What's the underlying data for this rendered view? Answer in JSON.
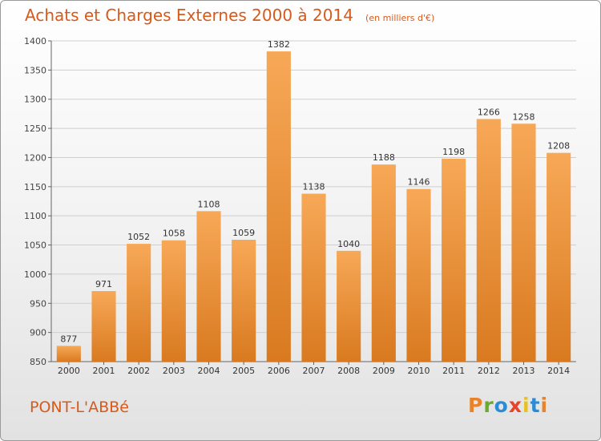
{
  "chart_data": {
    "type": "bar",
    "title": "Achats et Charges Externes 2000 à 2014",
    "unit_note": "(en milliers d'€)",
    "categories": [
      "2000",
      "2001",
      "2002",
      "2003",
      "2004",
      "2005",
      "2006",
      "2007",
      "2008",
      "2009",
      "2010",
      "2011",
      "2012",
      "2013",
      "2014"
    ],
    "values": [
      877,
      971,
      1052,
      1058,
      1108,
      1059,
      1382,
      1138,
      1040,
      1188,
      1146,
      1198,
      1266,
      1258,
      1208
    ],
    "ylim": [
      850,
      1400
    ],
    "yticks": [
      850,
      900,
      950,
      1000,
      1050,
      1100,
      1150,
      1200,
      1250,
      1300,
      1350,
      1400
    ],
    "grid": true,
    "bar_color_top": "#f7a857",
    "bar_color_bottom": "#d97a20",
    "text_color": "#d65a1a"
  },
  "footer": {
    "place": "PONT-L'ABBé",
    "brand": "Proxiti",
    "brand_colors": [
      "#e8822b",
      "#6aaa2c",
      "#2a8bd6",
      "#e8422b",
      "#e8c21b",
      "#2a8bd6",
      "#e8822b"
    ]
  }
}
